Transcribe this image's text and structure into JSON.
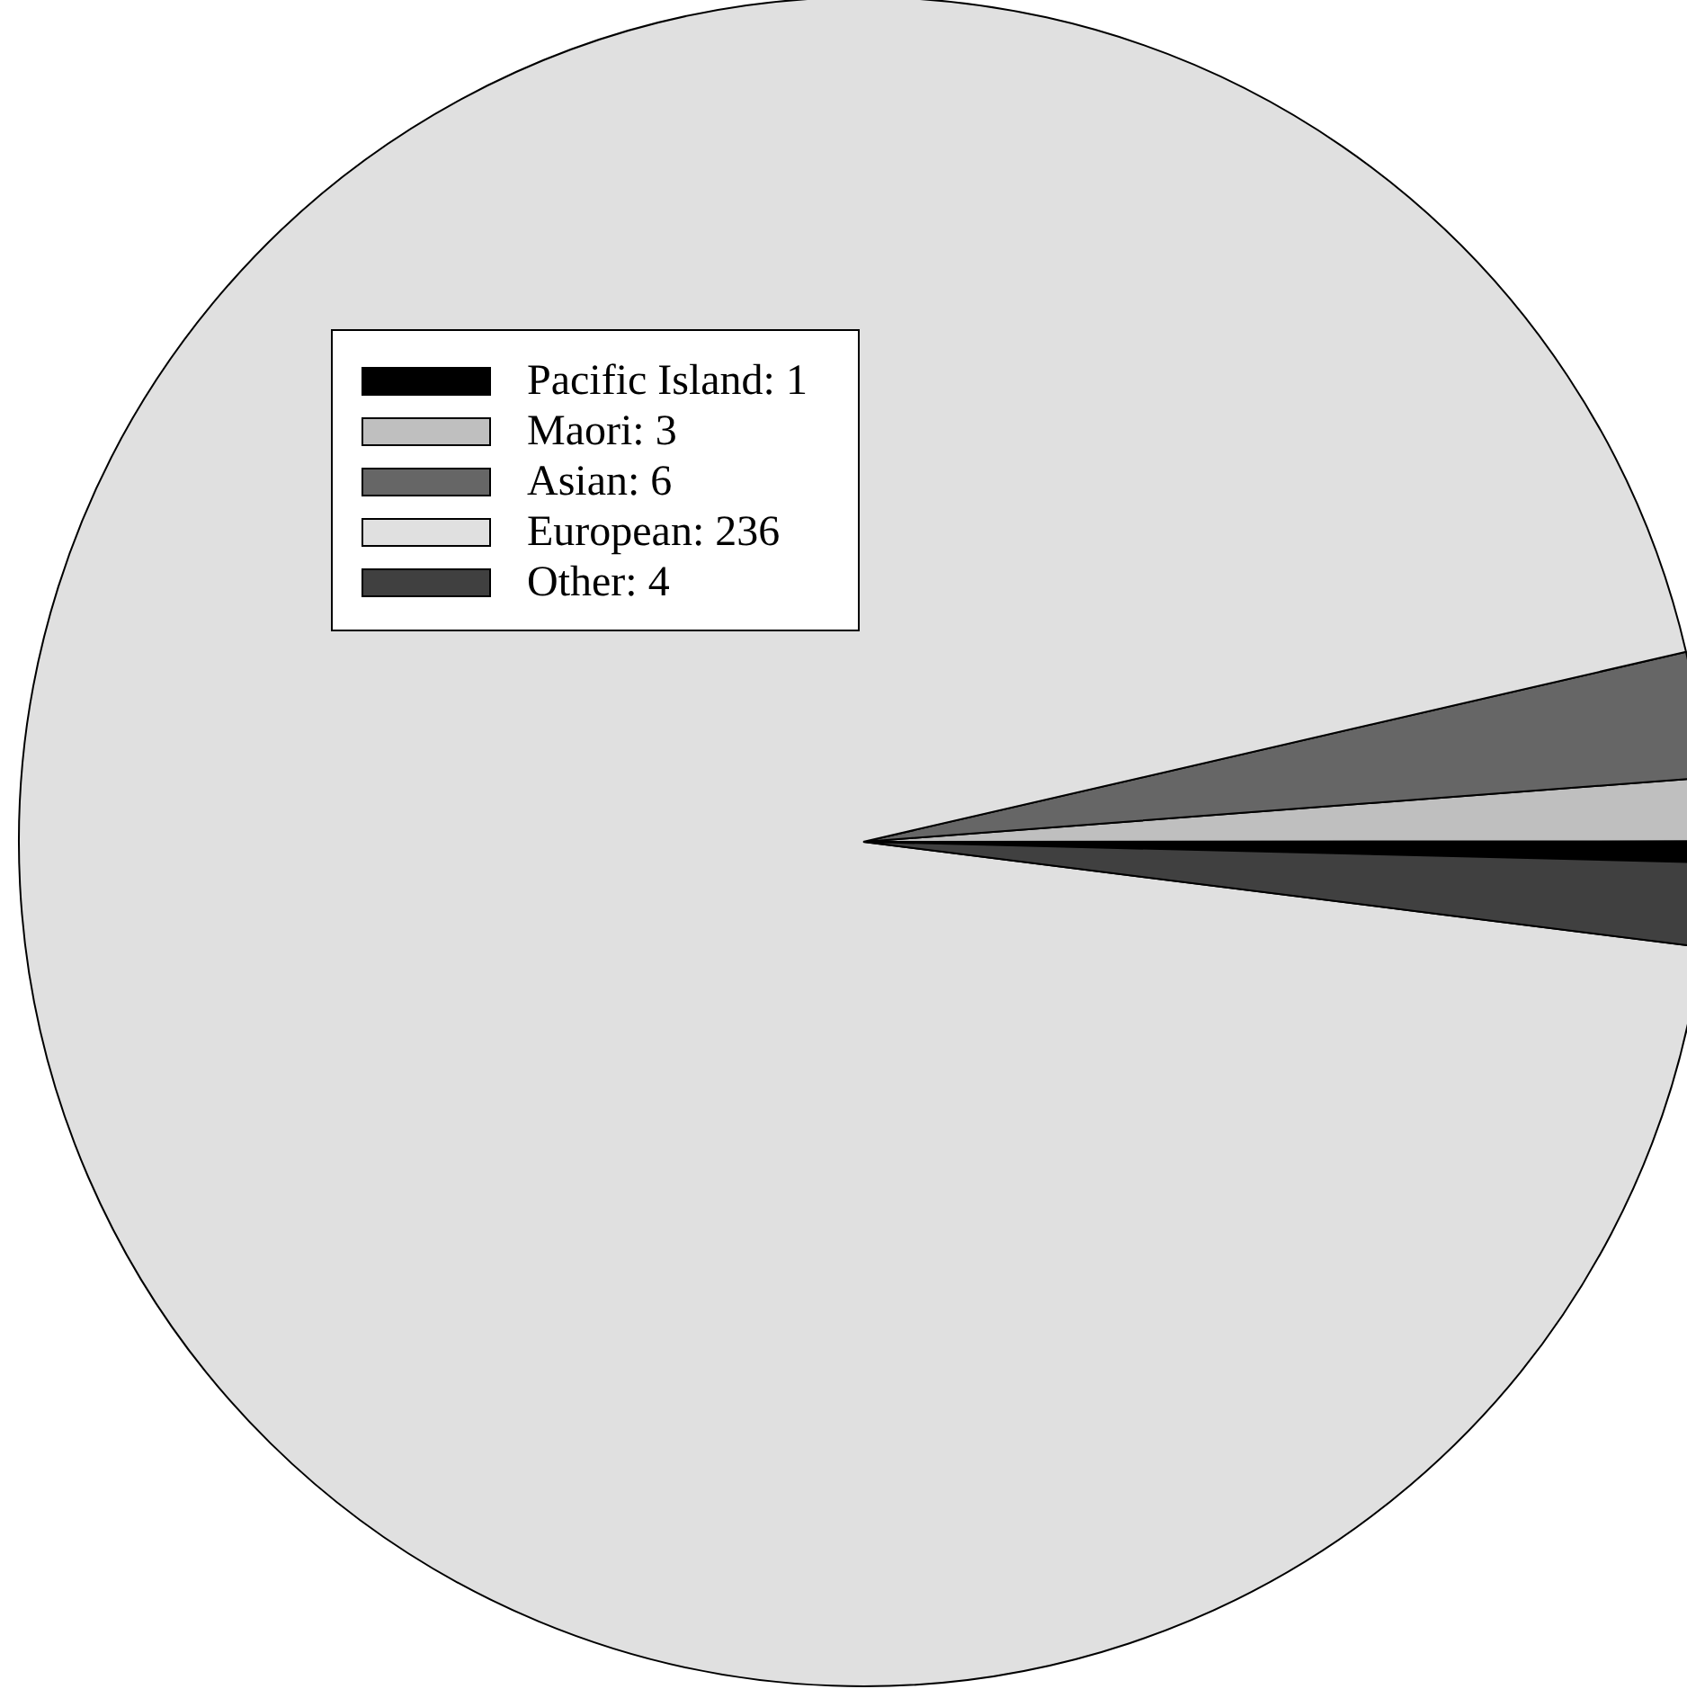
{
  "chart_data": {
    "type": "pie",
    "categories": [
      "Pacific Island: 1",
      "Maori: 3",
      "Asian: 6",
      "European: 236",
      "Other: 4"
    ],
    "values": [
      1,
      3,
      6,
      236,
      4
    ],
    "colors": [
      "#000000",
      "#bfbfbf",
      "#666666",
      "#e0e0e0",
      "#404040"
    ],
    "legend": "top left"
  }
}
